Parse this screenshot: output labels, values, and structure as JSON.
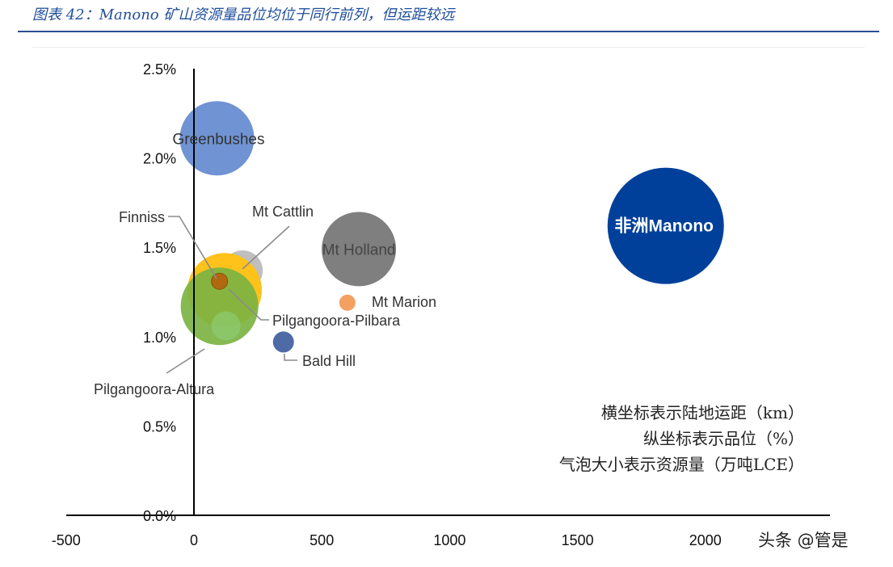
{
  "header": {
    "title": "图表 42：Manono 矿山资源量品位均位于同行前列，但运距较远"
  },
  "watermark": "头条 @管是",
  "chart_data": {
    "type": "bubble",
    "title": "",
    "xlabel": "横坐标表示陆地运距（km）",
    "ylabel": "纵坐标表示品位（%）",
    "size_label": "气泡大小表示资源量（万吨LCE）",
    "xlim": [
      -500,
      2500
    ],
    "ylim": [
      0.0,
      2.5
    ],
    "x_ticks": [
      "-500",
      "0",
      "500",
      "1000",
      "1500",
      "2000"
    ],
    "y_ticks": [
      "0.0%",
      "0.5%",
      "1.0%",
      "1.5%",
      "2.0%",
      "2.5%"
    ],
    "series": [
      {
        "name": "Greenbushes",
        "x": 90,
        "y": 2.11,
        "size": 46,
        "color": "#6f93d3"
      },
      {
        "name": "非洲Manono",
        "x": 1845,
        "y": 1.62,
        "size": 72,
        "color": "#00409a"
      },
      {
        "name": "Mt Holland",
        "x": 645,
        "y": 1.49,
        "size": 46,
        "color": "#7f7f7f"
      },
      {
        "name": "Mt Cattlin",
        "x": 190,
        "y": 1.37,
        "size": 25,
        "color": "#bfbfbf"
      },
      {
        "name": "Pilgangoora-Pilbara",
        "x": 120,
        "y": 1.26,
        "size": 46,
        "color": "#ffc21a"
      },
      {
        "name": "Finniss",
        "x": 100,
        "y": 1.31,
        "size": 10,
        "color": "#b0690f"
      },
      {
        "name": "Pilgangoora-Altura",
        "x": 100,
        "y": 1.17,
        "size": 48,
        "color": "#7cb342"
      },
      {
        "name": "Mt Marion",
        "x": 600,
        "y": 1.19,
        "size": 10,
        "color": "#f4a060"
      },
      {
        "name": "Bald Hill",
        "x": 350,
        "y": 0.97,
        "size": 13,
        "color": "#4e6ba6"
      }
    ]
  }
}
